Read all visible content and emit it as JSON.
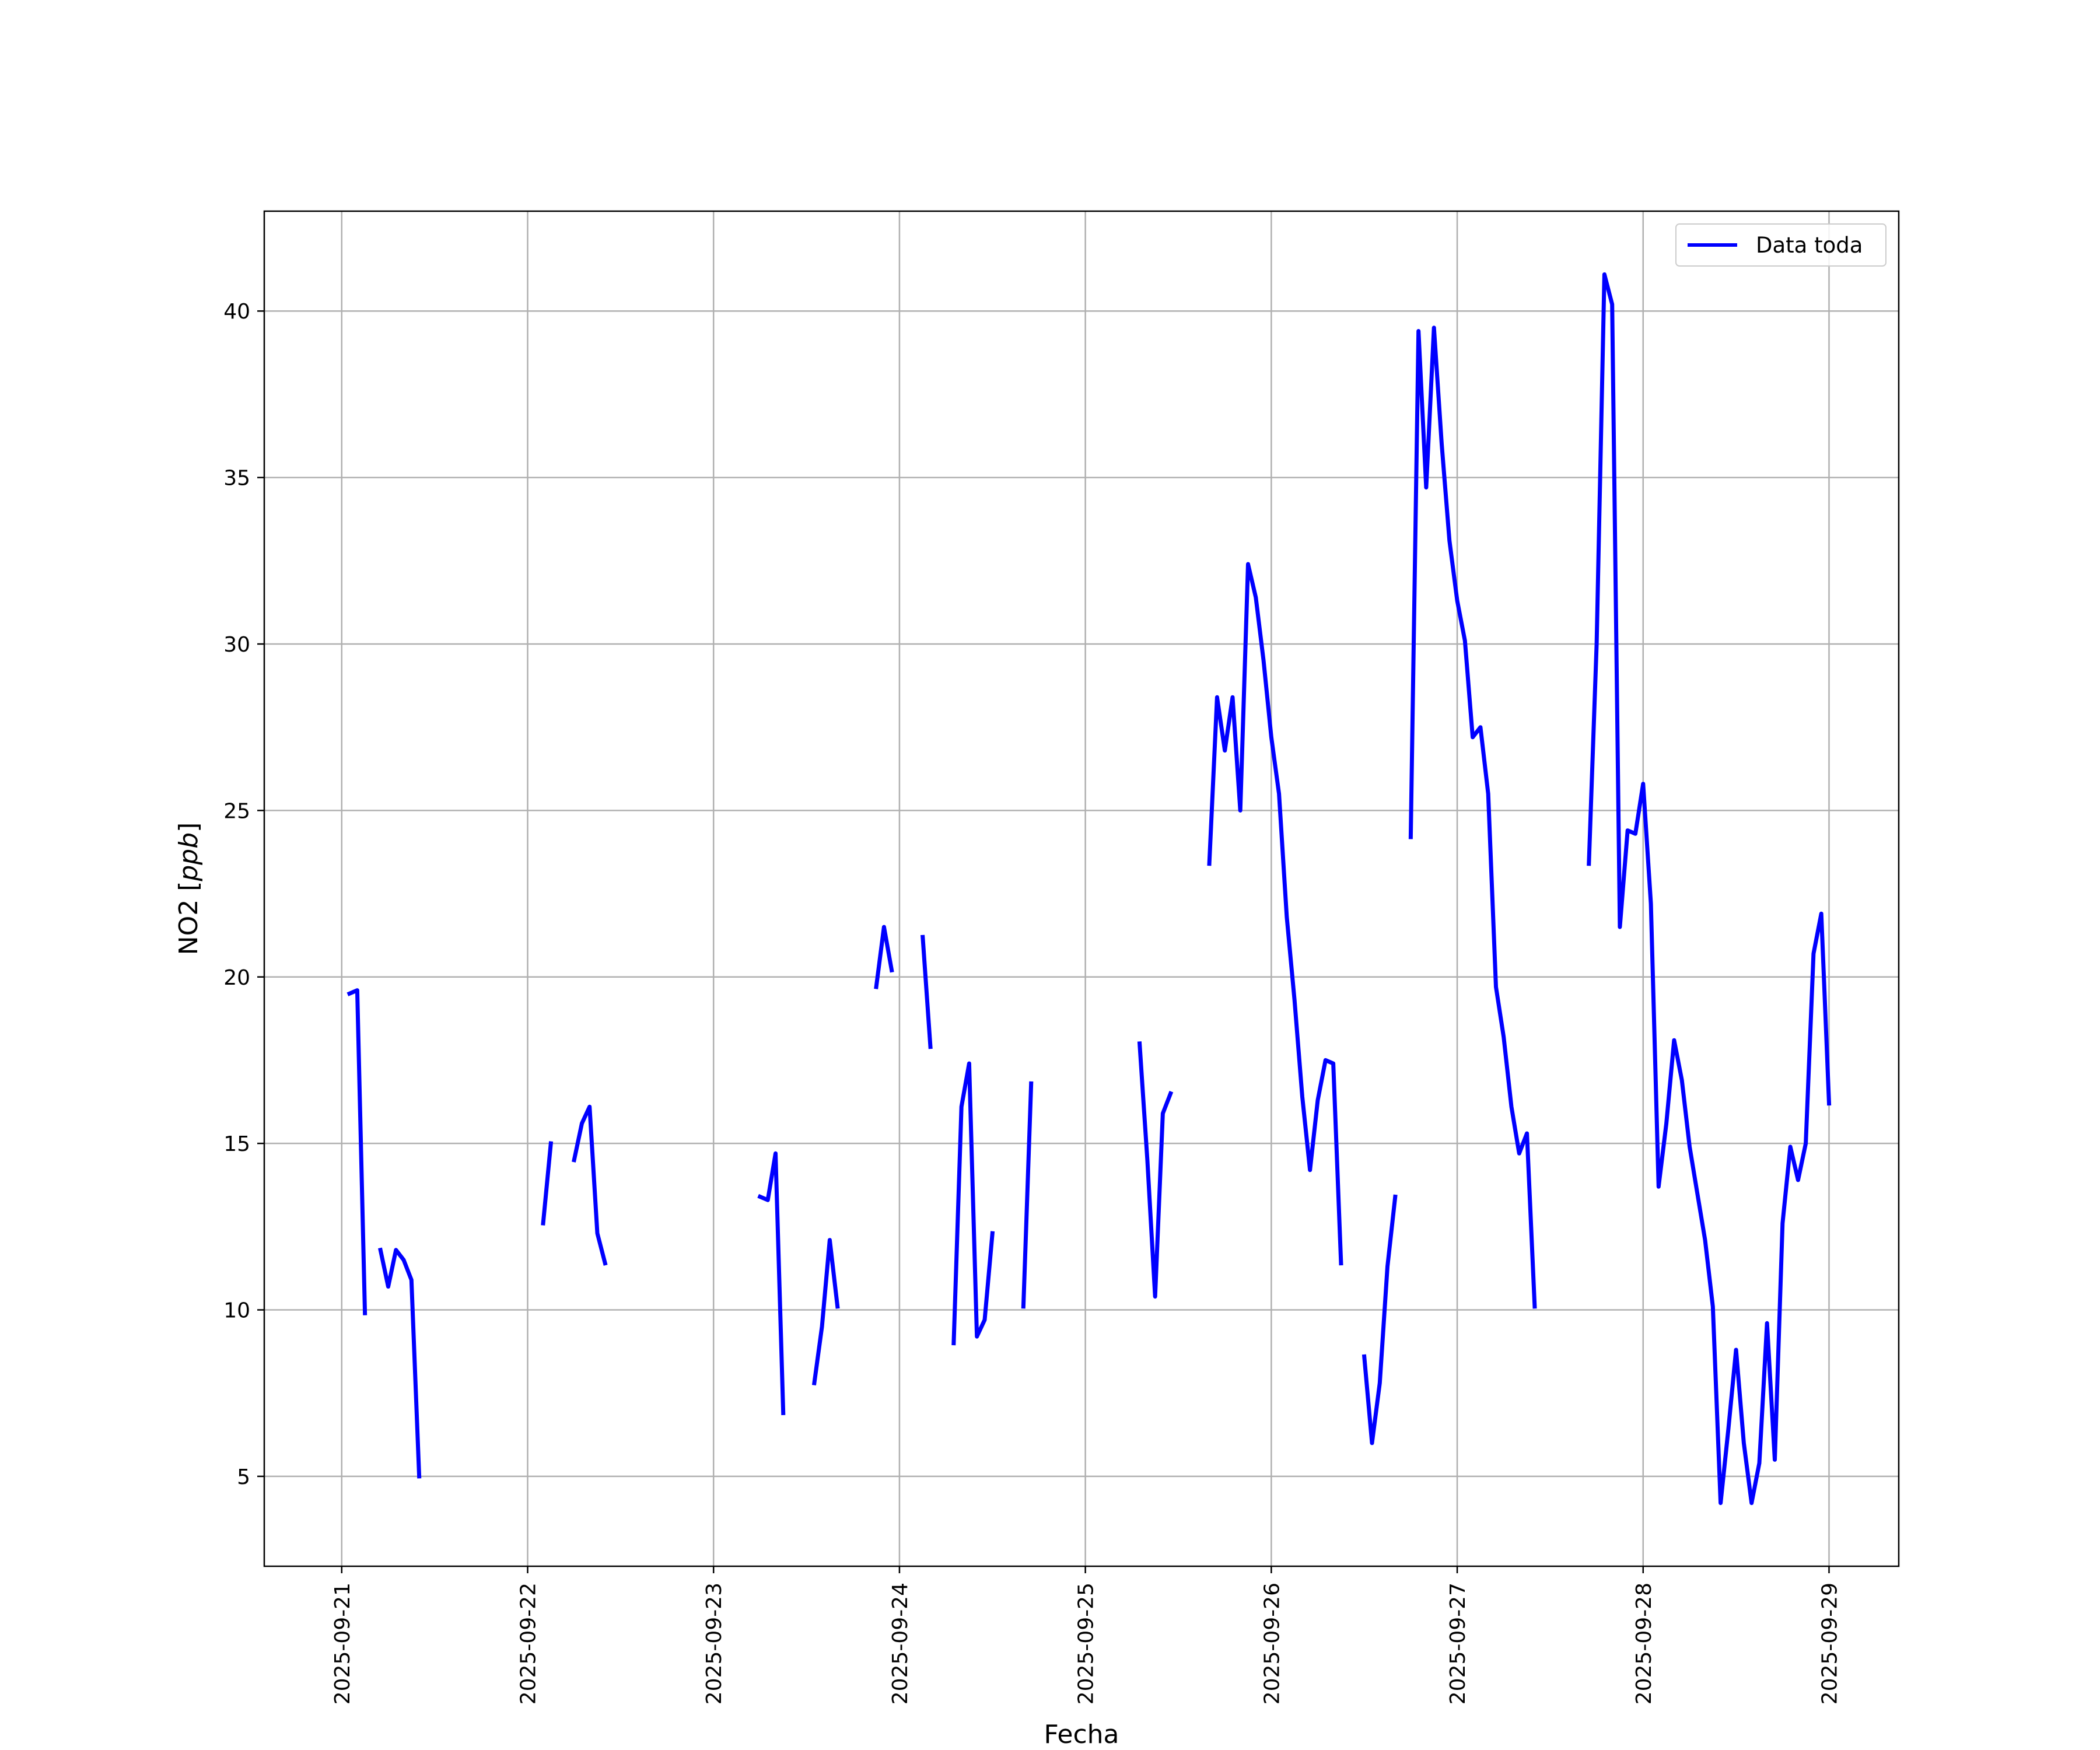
{
  "chart_data": {
    "type": "line",
    "xlabel": "Fecha",
    "ylabel": "NO2 [ppb]",
    "ylabel_main": "NO2 [",
    "ylabel_unit": "ppb",
    "ylabel_close": "]",
    "xlim": [
      "2025-09-20 14:00",
      "2025-09-29 09:00"
    ],
    "ylim": [
      2.3,
      43.0
    ],
    "grid": true,
    "legend_placement": "top-right",
    "line_color": "#0000ff",
    "xticks": [
      {
        "value": "2025-09-21 00:00",
        "label": "2025-09-21"
      },
      {
        "value": "2025-09-22 00:00",
        "label": "2025-09-22"
      },
      {
        "value": "2025-09-23 00:00",
        "label": "2025-09-23"
      },
      {
        "value": "2025-09-24 00:00",
        "label": "2025-09-24"
      },
      {
        "value": "2025-09-25 00:00",
        "label": "2025-09-25"
      },
      {
        "value": "2025-09-26 00:00",
        "label": "2025-09-26"
      },
      {
        "value": "2025-09-27 00:00",
        "label": "2025-09-27"
      },
      {
        "value": "2025-09-28 00:00",
        "label": "2025-09-28"
      },
      {
        "value": "2025-09-29 00:00",
        "label": "2025-09-29"
      }
    ],
    "yticks": [
      5,
      10,
      15,
      20,
      25,
      30,
      35,
      40
    ],
    "series": [
      {
        "name": "Data toda",
        "segments": [
          [
            [
              "2025-09-21 01:00",
              19.5
            ],
            [
              "2025-09-21 02:00",
              19.6
            ],
            [
              "2025-09-21 03:00",
              9.9
            ]
          ],
          [
            [
              "2025-09-21 05:00",
              11.8
            ],
            [
              "2025-09-21 06:00",
              10.7
            ],
            [
              "2025-09-21 07:00",
              11.8
            ],
            [
              "2025-09-21 08:00",
              11.5
            ],
            [
              "2025-09-21 09:00",
              10.9
            ],
            [
              "2025-09-21 10:00",
              5.0
            ]
          ],
          [
            [
              "2025-09-22 02:00",
              12.6
            ],
            [
              "2025-09-22 03:00",
              15.0
            ]
          ],
          [
            [
              "2025-09-22 06:00",
              14.5
            ],
            [
              "2025-09-22 07:00",
              15.6
            ],
            [
              "2025-09-22 08:00",
              16.1
            ],
            [
              "2025-09-22 09:00",
              12.3
            ],
            [
              "2025-09-22 10:00",
              11.4
            ]
          ],
          [
            [
              "2025-09-23 06:00",
              13.4
            ],
            [
              "2025-09-23 07:00",
              13.3
            ],
            [
              "2025-09-23 08:00",
              14.7
            ],
            [
              "2025-09-23 09:00",
              6.9
            ]
          ],
          [
            [
              "2025-09-23 13:00",
              7.8
            ],
            [
              "2025-09-23 14:00",
              9.5
            ],
            [
              "2025-09-23 15:00",
              12.1
            ],
            [
              "2025-09-23 16:00",
              10.1
            ]
          ],
          [
            [
              "2025-09-23 21:00",
              19.7
            ],
            [
              "2025-09-23 22:00",
              21.5
            ],
            [
              "2025-09-23 23:00",
              20.2
            ]
          ],
          [
            [
              "2025-09-24 03:00",
              21.2
            ],
            [
              "2025-09-24 04:00",
              17.9
            ]
          ],
          [
            [
              "2025-09-24 07:00",
              9.0
            ],
            [
              "2025-09-24 08:00",
              16.1
            ],
            [
              "2025-09-24 09:00",
              17.4
            ],
            [
              "2025-09-24 10:00",
              9.2
            ],
            [
              "2025-09-24 11:00",
              9.7
            ],
            [
              "2025-09-24 12:00",
              12.3
            ]
          ],
          [
            [
              "2025-09-24 16:00",
              10.1
            ],
            [
              "2025-09-24 17:00",
              16.8
            ]
          ],
          [
            [
              "2025-09-25 07:00",
              18.0
            ],
            [
              "2025-09-25 08:00",
              14.5
            ],
            [
              "2025-09-25 09:00",
              10.4
            ],
            [
              "2025-09-25 10:00",
              15.9
            ],
            [
              "2025-09-25 11:00",
              16.5
            ]
          ],
          [
            [
              "2025-09-25 16:00",
              23.4
            ],
            [
              "2025-09-25 17:00",
              28.4
            ],
            [
              "2025-09-25 18:00",
              26.8
            ],
            [
              "2025-09-25 19:00",
              28.4
            ],
            [
              "2025-09-25 20:00",
              25.0
            ],
            [
              "2025-09-25 21:00",
              32.4
            ],
            [
              "2025-09-25 22:00",
              31.4
            ],
            [
              "2025-09-25 23:00",
              29.5
            ],
            [
              "2025-09-26 00:00",
              27.2
            ],
            [
              "2025-09-26 01:00",
              25.5
            ],
            [
              "2025-09-26 02:00",
              21.8
            ],
            [
              "2025-09-26 03:00",
              19.3
            ],
            [
              "2025-09-26 04:00",
              16.4
            ],
            [
              "2025-09-26 05:00",
              14.2
            ],
            [
              "2025-09-26 06:00",
              16.3
            ],
            [
              "2025-09-26 07:00",
              17.5
            ],
            [
              "2025-09-26 08:00",
              17.4
            ],
            [
              "2025-09-26 09:00",
              11.4
            ]
          ],
          [
            [
              "2025-09-26 12:00",
              8.6
            ],
            [
              "2025-09-26 13:00",
              6.0
            ],
            [
              "2025-09-26 14:00",
              7.8
            ],
            [
              "2025-09-26 15:00",
              11.3
            ],
            [
              "2025-09-26 16:00",
              13.4
            ]
          ],
          [
            [
              "2025-09-26 18:00",
              24.2
            ],
            [
              "2025-09-26 19:00",
              39.4
            ],
            [
              "2025-09-26 20:00",
              34.7
            ],
            [
              "2025-09-26 21:00",
              39.5
            ],
            [
              "2025-09-26 22:00",
              36.0
            ],
            [
              "2025-09-26 23:00",
              33.1
            ],
            [
              "2025-09-27 00:00",
              31.3
            ],
            [
              "2025-09-27 01:00",
              30.1
            ],
            [
              "2025-09-27 02:00",
              27.2
            ],
            [
              "2025-09-27 03:00",
              27.5
            ],
            [
              "2025-09-27 04:00",
              25.5
            ],
            [
              "2025-09-27 05:00",
              19.7
            ],
            [
              "2025-09-27 06:00",
              18.2
            ],
            [
              "2025-09-27 07:00",
              16.1
            ],
            [
              "2025-09-27 08:00",
              14.7
            ],
            [
              "2025-09-27 09:00",
              15.3
            ],
            [
              "2025-09-27 10:00",
              10.1
            ]
          ],
          [
            [
              "2025-09-27 17:00",
              23.4
            ],
            [
              "2025-09-27 18:00",
              30.0
            ],
            [
              "2025-09-27 19:00",
              41.1
            ],
            [
              "2025-09-27 20:00",
              40.2
            ],
            [
              "2025-09-27 21:00",
              21.5
            ],
            [
              "2025-09-27 22:00",
              24.4
            ],
            [
              "2025-09-27 23:00",
              24.3
            ],
            [
              "2025-09-28 00:00",
              25.8
            ],
            [
              "2025-09-28 01:00",
              22.2
            ],
            [
              "2025-09-28 02:00",
              13.7
            ],
            [
              "2025-09-28 03:00",
              15.6
            ],
            [
              "2025-09-28 04:00",
              18.1
            ],
            [
              "2025-09-28 05:00",
              16.9
            ],
            [
              "2025-09-28 06:00",
              14.9
            ],
            [
              "2025-09-28 07:00",
              13.5
            ],
            [
              "2025-09-28 08:00",
              12.1
            ],
            [
              "2025-09-28 09:00",
              10.1
            ],
            [
              "2025-09-28 10:00",
              4.2
            ],
            [
              "2025-09-28 11:00",
              6.4
            ],
            [
              "2025-09-28 12:00",
              8.8
            ],
            [
              "2025-09-28 13:00",
              6.0
            ],
            [
              "2025-09-28 14:00",
              4.2
            ],
            [
              "2025-09-28 15:00",
              5.4
            ],
            [
              "2025-09-28 16:00",
              9.6
            ],
            [
              "2025-09-28 17:00",
              5.5
            ],
            [
              "2025-09-28 18:00",
              12.6
            ],
            [
              "2025-09-28 19:00",
              14.9
            ],
            [
              "2025-09-28 20:00",
              13.9
            ],
            [
              "2025-09-28 21:00",
              15.0
            ],
            [
              "2025-09-28 22:00",
              20.7
            ],
            [
              "2025-09-28 23:00",
              21.9
            ],
            [
              "2025-09-29 00:00",
              16.2
            ]
          ]
        ]
      }
    ]
  }
}
